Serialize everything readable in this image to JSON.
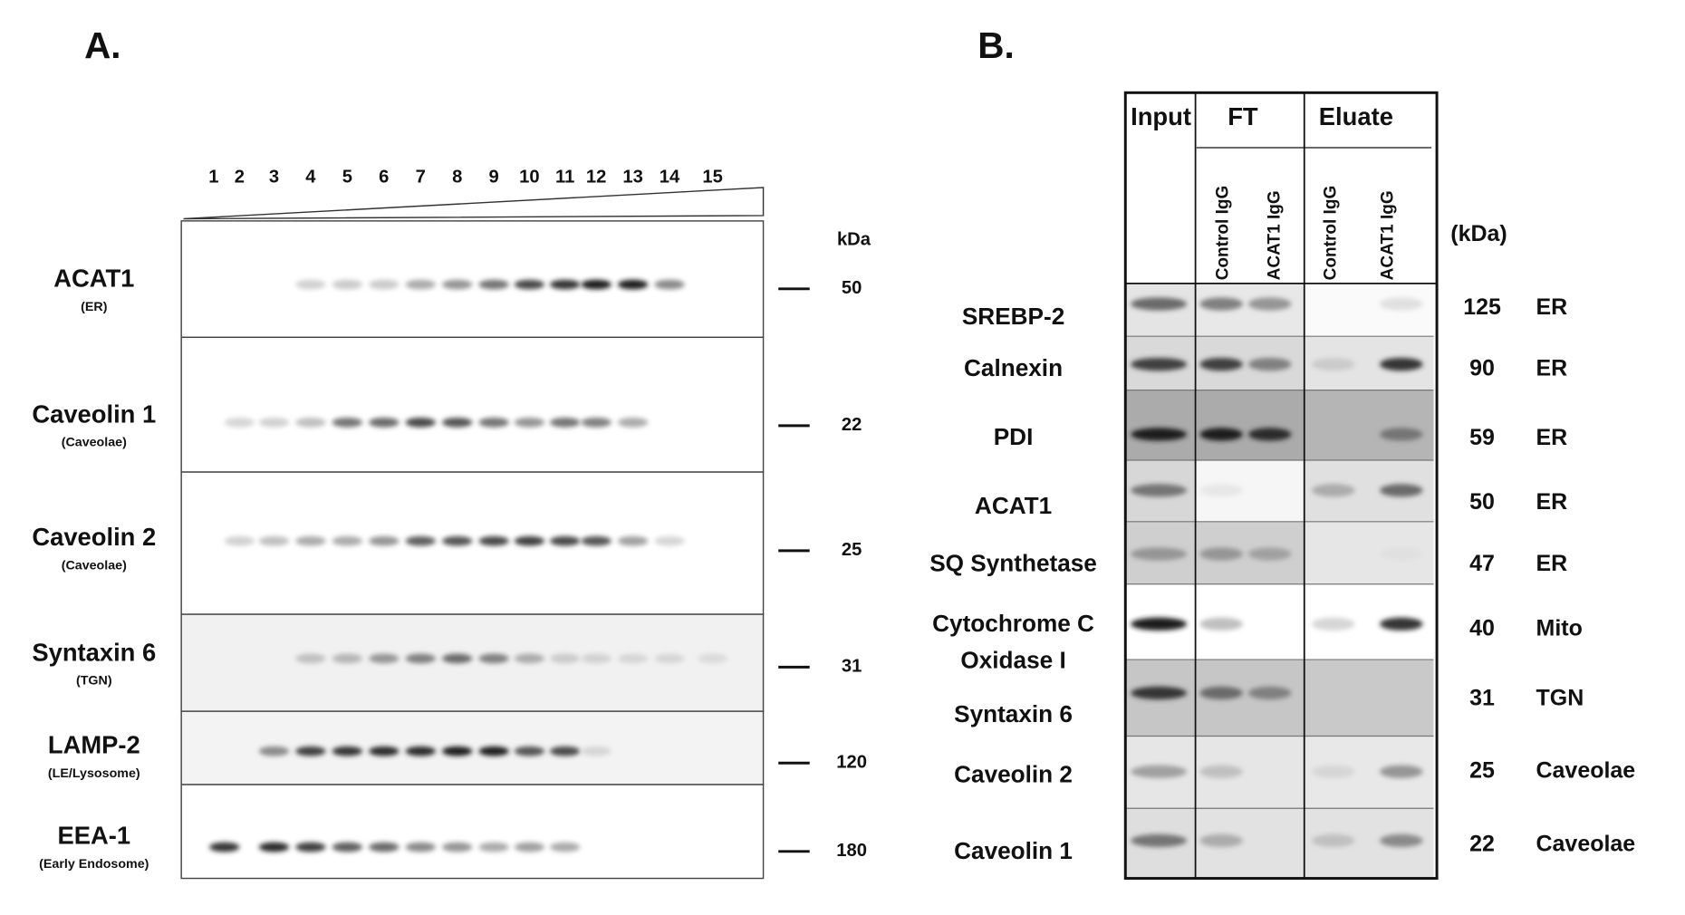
{
  "panel_a": {
    "label": "A.",
    "lanes": [
      {
        "label": "1",
        "color": "#111111"
      },
      {
        "label": "2",
        "color": "#111111"
      },
      {
        "label": "3",
        "color": "#111111"
      },
      {
        "label": "4",
        "color": "#111111"
      },
      {
        "label": "5",
        "color": "#111111"
      },
      {
        "label": "6",
        "color": "#111111"
      },
      {
        "label": "7",
        "color": "#111111"
      },
      {
        "label": "8",
        "color": "#111111"
      },
      {
        "label": "9",
        "color": "#111111"
      },
      {
        "label": "10",
        "color": "#2a2ad0"
      },
      {
        "label": "11",
        "color": "#2a2ad0"
      },
      {
        "label": "12",
        "color": "#111111"
      },
      {
        "label": "13",
        "color": "#111111"
      },
      {
        "label": "14",
        "color": "#111111"
      },
      {
        "label": "15",
        "color": "#111111"
      }
    ],
    "kda_header": "kDa",
    "rows": [
      {
        "name": "ACAT1",
        "sublabel": "(ER)",
        "kda": "50"
      },
      {
        "name": "Caveolin 1",
        "sublabel": "(Caveolae)",
        "kda": "22"
      },
      {
        "name": "Caveolin 2",
        "sublabel": "(Caveolae)",
        "kda": "25"
      },
      {
        "name": "Syntaxin 6",
        "sublabel": "(TGN)",
        "kda": "31"
      },
      {
        "name": "LAMP-2",
        "sublabel": "(LE/Lysosome)",
        "kda": "120"
      },
      {
        "name": "EEA-1",
        "sublabel": "(Early Endosome)",
        "kda": "180"
      }
    ]
  },
  "panel_b": {
    "label": "B.",
    "groups": [
      "Input",
      "FT",
      "Eluate"
    ],
    "columns": [
      "Control IgG",
      "ACAT1 IgG",
      "Control IgG",
      "ACAT1 IgG"
    ],
    "kda_header": "(kDa)",
    "rows": [
      {
        "name": [
          "SREBP-2"
        ],
        "kda": "125",
        "location": "ER"
      },
      {
        "name": [
          "Calnexin"
        ],
        "kda": "90",
        "location": "ER"
      },
      {
        "name": [
          "PDI"
        ],
        "kda": "59",
        "location": "ER"
      },
      {
        "name": [
          "ACAT1"
        ],
        "kda": "50",
        "location": "ER"
      },
      {
        "name": [
          "SQ Synthetase"
        ],
        "kda": "47",
        "location": "ER"
      },
      {
        "name": [
          "Cytochrome C",
          "Oxidase I"
        ],
        "kda": "40",
        "location": "Mito"
      },
      {
        "name": [
          "Syntaxin 6"
        ],
        "kda": "31",
        "location": "TGN"
      },
      {
        "name": [
          "Caveolin 2"
        ],
        "kda": "25",
        "location": "Caveolae"
      },
      {
        "name": [
          "Caveolin 1"
        ],
        "kda": "22",
        "location": "Caveolae"
      }
    ]
  }
}
